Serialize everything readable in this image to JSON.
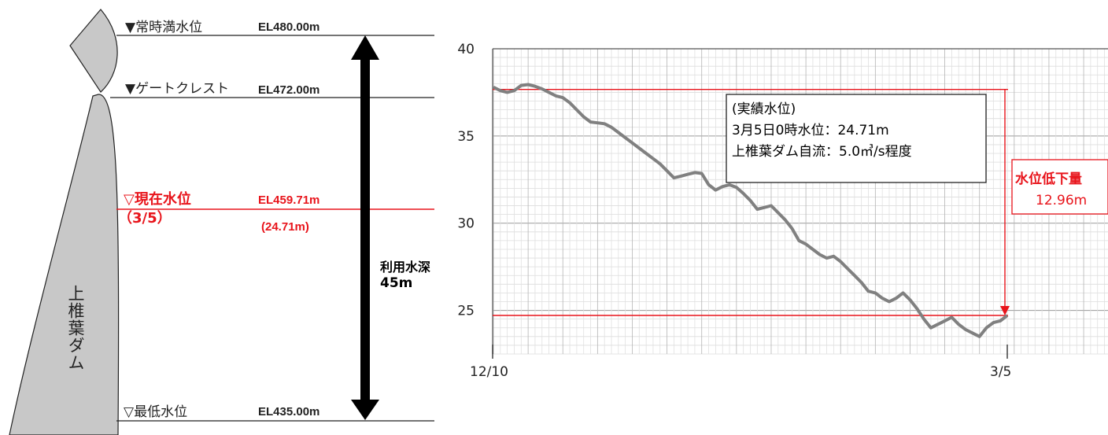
{
  "diagram": {
    "dam_name": "上椎葉ダム",
    "levels": [
      {
        "key": "full",
        "label": "▼常時満水位",
        "elevation": "EL480.00m"
      },
      {
        "key": "crest",
        "label": "▼ゲートクレスト",
        "elevation": "EL472.00m"
      },
      {
        "key": "current",
        "label": "▽現在水位",
        "date": "（3/5）",
        "elevation": "EL459.71m",
        "depth": "(24.71m)"
      },
      {
        "key": "min",
        "label": "▽最低水位",
        "elevation": "EL435.00m"
      }
    ],
    "usable_depth_label": "利用水深",
    "usable_depth_value": "45m",
    "colors": {
      "current_level": "#e8141b",
      "dam_fill": "#c8c8c8",
      "arrow": "#000000"
    }
  },
  "chart_data": {
    "type": "line",
    "x_start_label": "12/10",
    "x_end_label": "3/5",
    "xlabel": "",
    "ylabel": "",
    "ylim": [
      22.5,
      40
    ],
    "yticks": [
      25,
      30,
      35,
      40
    ],
    "grid": true,
    "series": [
      {
        "values": [
          37.8,
          37.6,
          37.5,
          37.6,
          37.9,
          37.95,
          37.85,
          37.7,
          37.5,
          37.3,
          37.2,
          36.9,
          36.5,
          36.1,
          35.8,
          35.75,
          35.7,
          35.5,
          35.2,
          34.9,
          34.6,
          34.3,
          34.0,
          33.7,
          33.4,
          33.0,
          32.6,
          32.7,
          32.8,
          32.9,
          32.85,
          32.2,
          31.9,
          32.1,
          32.2,
          32.05,
          31.7,
          31.3,
          30.8,
          30.9,
          31.0,
          30.6,
          30.2,
          29.7,
          29.0,
          28.8,
          28.5,
          28.2,
          28.0,
          28.1,
          27.8,
          27.4,
          27.0,
          26.6,
          26.1,
          26.0,
          25.7,
          25.5,
          25.7,
          26.0,
          25.6,
          25.1,
          24.5,
          24.0,
          24.2,
          24.4,
          24.6,
          24.2,
          23.9,
          23.7,
          23.5,
          24.0,
          24.3,
          24.4,
          24.71
        ],
        "color": "#808080"
      }
    ],
    "reference_lines": [
      37.67,
      24.71
    ],
    "reference_color": "#e8141b",
    "annotation": {
      "heading": "(実績水位)",
      "line1": "3月5日0時水位：24.71m",
      "line2": "上椎葉ダム自流：5.0㎥/s程度"
    },
    "drop": {
      "label": "水位低下量",
      "value": "12.96m"
    }
  }
}
